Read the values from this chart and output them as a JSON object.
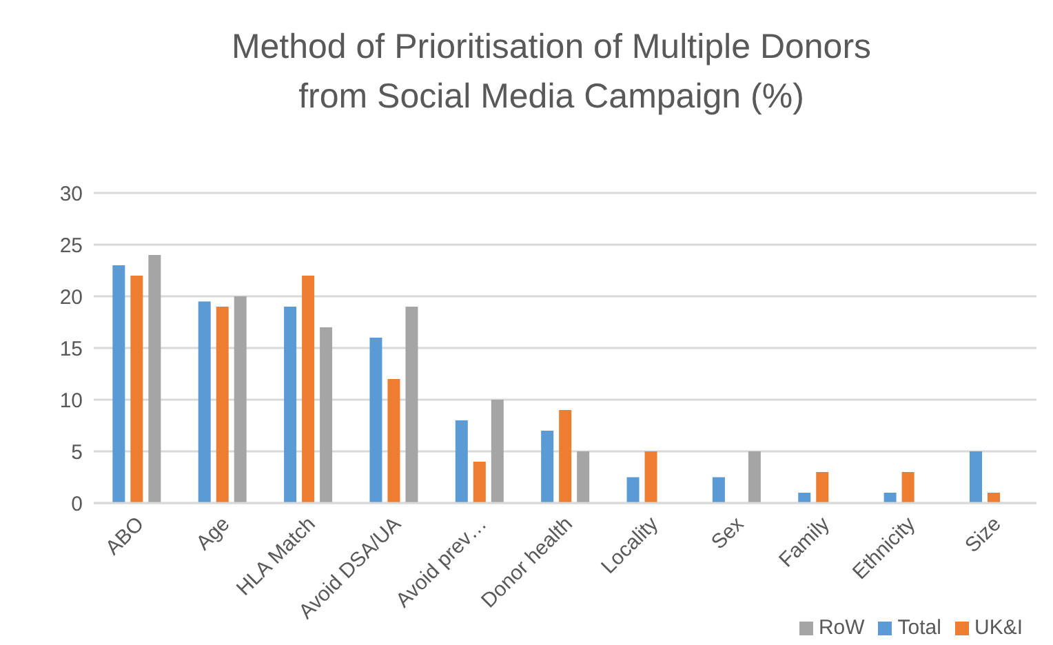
{
  "chart_data": {
    "type": "bar",
    "title": "Method of Prioritisation of Multiple Donors from Social Media Campaign (%)",
    "categories": [
      "ABO",
      "Age",
      "HLA Match",
      "Avoid DSA/UA",
      "Avoid prev…",
      "Donor health",
      "Locality",
      "Sex",
      "Family",
      "Ethnicity",
      "Size"
    ],
    "series": [
      {
        "name": "Total",
        "color": "#5b9bd5",
        "values": [
          23,
          19.5,
          19,
          16,
          8,
          7,
          2.5,
          2.5,
          1,
          1,
          5
        ]
      },
      {
        "name": "UK&I",
        "color": "#ed7d31",
        "values": [
          22,
          19,
          22,
          12,
          4,
          9,
          5,
          null,
          3,
          3,
          1
        ]
      },
      {
        "name": "RoW",
        "color": "#a5a5a5",
        "values": [
          24,
          20,
          17,
          19,
          10,
          5,
          null,
          5,
          null,
          null,
          null
        ]
      }
    ],
    "ylim": [
      0,
      30
    ],
    "yticks": [
      0,
      5,
      10,
      15,
      20,
      25,
      30
    ],
    "grid": "y",
    "legend": "bottom right"
  }
}
